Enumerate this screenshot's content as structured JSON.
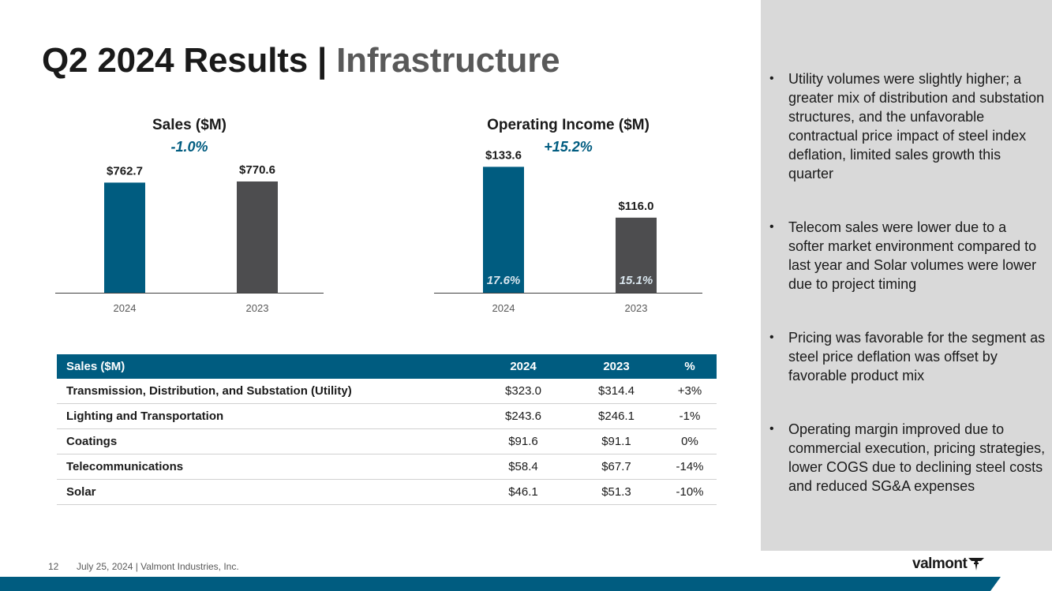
{
  "title": {
    "part1": "Q2 2024 Results | ",
    "part2": "Infrastructure"
  },
  "chart_data": [
    {
      "type": "bar",
      "title": "Sales ($M)",
      "subtitle": "-1.0%",
      "categories": [
        "2024",
        "2023"
      ],
      "values": [
        762.7,
        770.6
      ],
      "data_labels": [
        "$762.7",
        "$770.6"
      ],
      "inner_labels": [
        "",
        ""
      ],
      "ylim": [
        0,
        1000
      ],
      "colors": [
        "#005c80",
        "#4d4d4f"
      ]
    },
    {
      "type": "bar",
      "title": "Operating Income ($M)",
      "subtitle": "+15.2%",
      "categories": [
        "2024",
        "2023"
      ],
      "values": [
        133.6,
        116.0
      ],
      "data_labels": [
        "$133.6",
        "$116.0"
      ],
      "inner_labels": [
        "17.6%",
        "15.1%"
      ],
      "ylim": [
        90,
        140
      ],
      "colors": [
        "#005c80",
        "#4d4d4f"
      ]
    }
  ],
  "table": {
    "headers": [
      "Sales ($M)",
      "2024",
      "2023",
      "%"
    ],
    "rows": [
      [
        "Transmission, Distribution, and Substation (Utility)",
        "$323.0",
        "$314.4",
        "+3%"
      ],
      [
        "Lighting and Transportation",
        "$243.6",
        "$246.1",
        "-1%"
      ],
      [
        "Coatings",
        "$91.6",
        "$91.1",
        "0%"
      ],
      [
        "Telecommunications",
        "$58.4",
        "$67.7",
        "-14%"
      ],
      [
        "Solar",
        "$46.1",
        "$51.3",
        "-10%"
      ]
    ]
  },
  "bullets": [
    "Utility volumes were slightly higher; a greater mix of distribution and substation structures, and the unfavorable contractual price impact of steel index deflation, limited sales growth this quarter",
    "Telecom sales were lower due to a softer market environment compared to last year and Solar volumes were lower due to project timing",
    "Pricing was favorable for the segment as steel price deflation was offset by favorable product mix",
    "Operating margin improved due to commercial execution, pricing strategies, lower COGS due to declining steel costs and reduced SG&A expenses"
  ],
  "footer": {
    "page": "12",
    "text": "July 25, 2024  | Valmont Industries, Inc."
  },
  "logo": {
    "text": "valmont"
  },
  "colors": {
    "accent": "#005c80",
    "dark_bar": "#4d4d4f",
    "panel": "#d9d9d9"
  }
}
